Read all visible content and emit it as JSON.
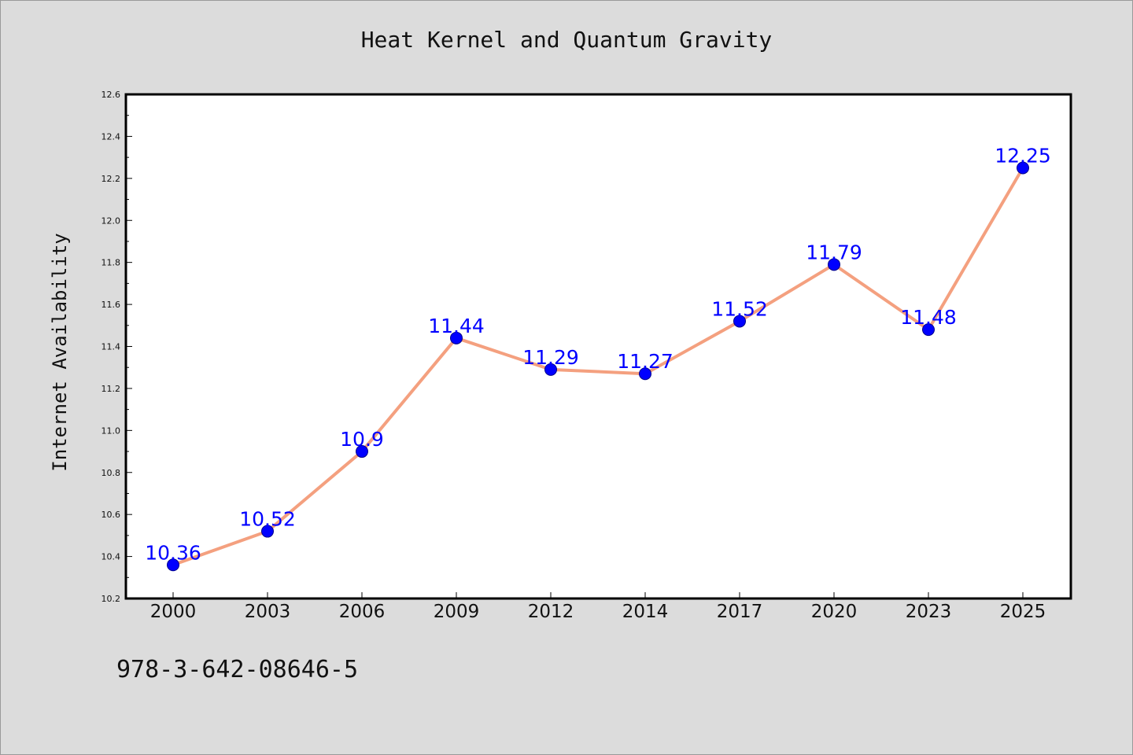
{
  "chart_data": {
    "type": "line",
    "title": "Heat Kernel and Quantum Gravity",
    "xlabel": "",
    "ylabel": "Internet Availability",
    "categories": [
      "2000",
      "2003",
      "2006",
      "2009",
      "2012",
      "2014",
      "2017",
      "2020",
      "2023",
      "2025"
    ],
    "series": [
      {
        "values": [
          10.36,
          10.52,
          10.9,
          11.44,
          11.29,
          11.27,
          11.52,
          11.79,
          11.48,
          12.25
        ]
      }
    ],
    "data_labels": [
      "10.36",
      "10.52",
      "10.9",
      "11.44",
      "11.29",
      "11.27",
      "11.52",
      "11.79",
      "11.48",
      "12.25"
    ],
    "ylim": [
      10.2,
      12.6
    ],
    "yticks": [
      "10.2",
      "10.4",
      "10.6",
      "10.8",
      "11.0",
      "11.2",
      "11.4",
      "11.6",
      "11.8",
      "12.0",
      "12.2",
      "12.4",
      "12.6"
    ],
    "grid": false,
    "legend": "none",
    "colors": {
      "line": "#f4a07f",
      "marker": "#0000ff",
      "marker_edge": "#00008b",
      "data_label": "#0000ff",
      "background": "#dcdcdc",
      "plot_background": "#ffffff"
    }
  },
  "footer": {
    "isbn": "978-3-642-08646-5"
  }
}
